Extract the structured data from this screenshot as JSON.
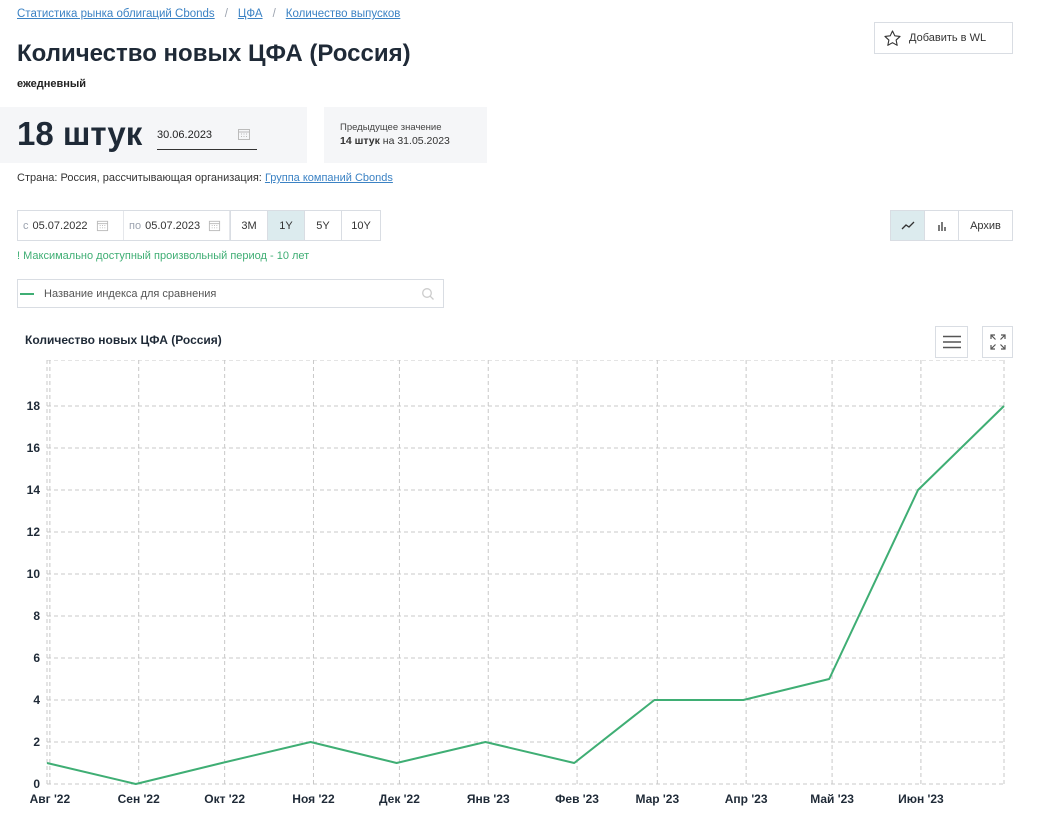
{
  "breadcrumb": {
    "items": [
      "Статистика рынка облигаций Cbonds",
      "ЦФА",
      "Количество выпусков"
    ],
    "separator": "/"
  },
  "header": {
    "title": "Количество новых ЦФА (Россия)",
    "frequency": "ежедневный",
    "watchlist_label": "Добавить в WL"
  },
  "current": {
    "value": "18 штук",
    "date": "30.06.2023"
  },
  "previous": {
    "label": "Предыдущее значение",
    "value": "14 штук",
    "on": "на",
    "date": "31.05.2023"
  },
  "meta": {
    "country_text": "Страна: Россия, рассчитывающая организация:",
    "org_link": "Группа компаний Cbonds"
  },
  "period": {
    "from_label": "с",
    "from_date": "05.07.2022",
    "to_label": "по",
    "to_date": "05.07.2023",
    "ranges": [
      "3M",
      "1Y",
      "5Y",
      "10Y"
    ],
    "active_range": "1Y"
  },
  "view": {
    "archive_label": "Архив",
    "active": "line"
  },
  "notice": "! Максимально доступный произвольный период - 10 лет",
  "compare": {
    "placeholder": "Название индекса для сравнения"
  },
  "colors": {
    "series": "#3fae74",
    "link": "#3b82c4",
    "active_bg": "#dcebee",
    "grid": "#c8c8c8"
  },
  "chart_data": {
    "type": "line",
    "title": "Количество новых ЦФА (Россия)",
    "x": [
      "2022-07-31",
      "2022-08-31",
      "2022-09-30",
      "2022-10-31",
      "2022-11-30",
      "2022-12-31",
      "2023-01-31",
      "2023-02-28",
      "2023-03-31",
      "2023-04-30",
      "2023-05-31",
      "2023-06-30"
    ],
    "values": [
      1,
      0,
      1,
      2,
      1,
      2,
      1,
      4,
      4,
      5,
      14,
      18
    ],
    "x_tick_labels": [
      "Авг '22",
      "Сен '22",
      "Окт '22",
      "Ноя '22",
      "Дек '22",
      "Янв '23",
      "Фев '23",
      "Мар '23",
      "Апр '23",
      "Май '23",
      "Июн '23"
    ],
    "x_tick_dates": [
      "2022-08-01",
      "2022-09-01",
      "2022-10-01",
      "2022-11-01",
      "2022-12-01",
      "2023-01-01",
      "2023-02-01",
      "2023-03-01",
      "2023-04-01",
      "2023-05-01",
      "2023-06-01"
    ],
    "xlim": [
      "2022-07-31",
      "2023-06-30"
    ],
    "y_ticks": [
      0,
      2,
      4,
      6,
      8,
      10,
      12,
      14,
      16,
      18
    ],
    "ylim": [
      0,
      18
    ],
    "grid": true,
    "legend": false
  }
}
